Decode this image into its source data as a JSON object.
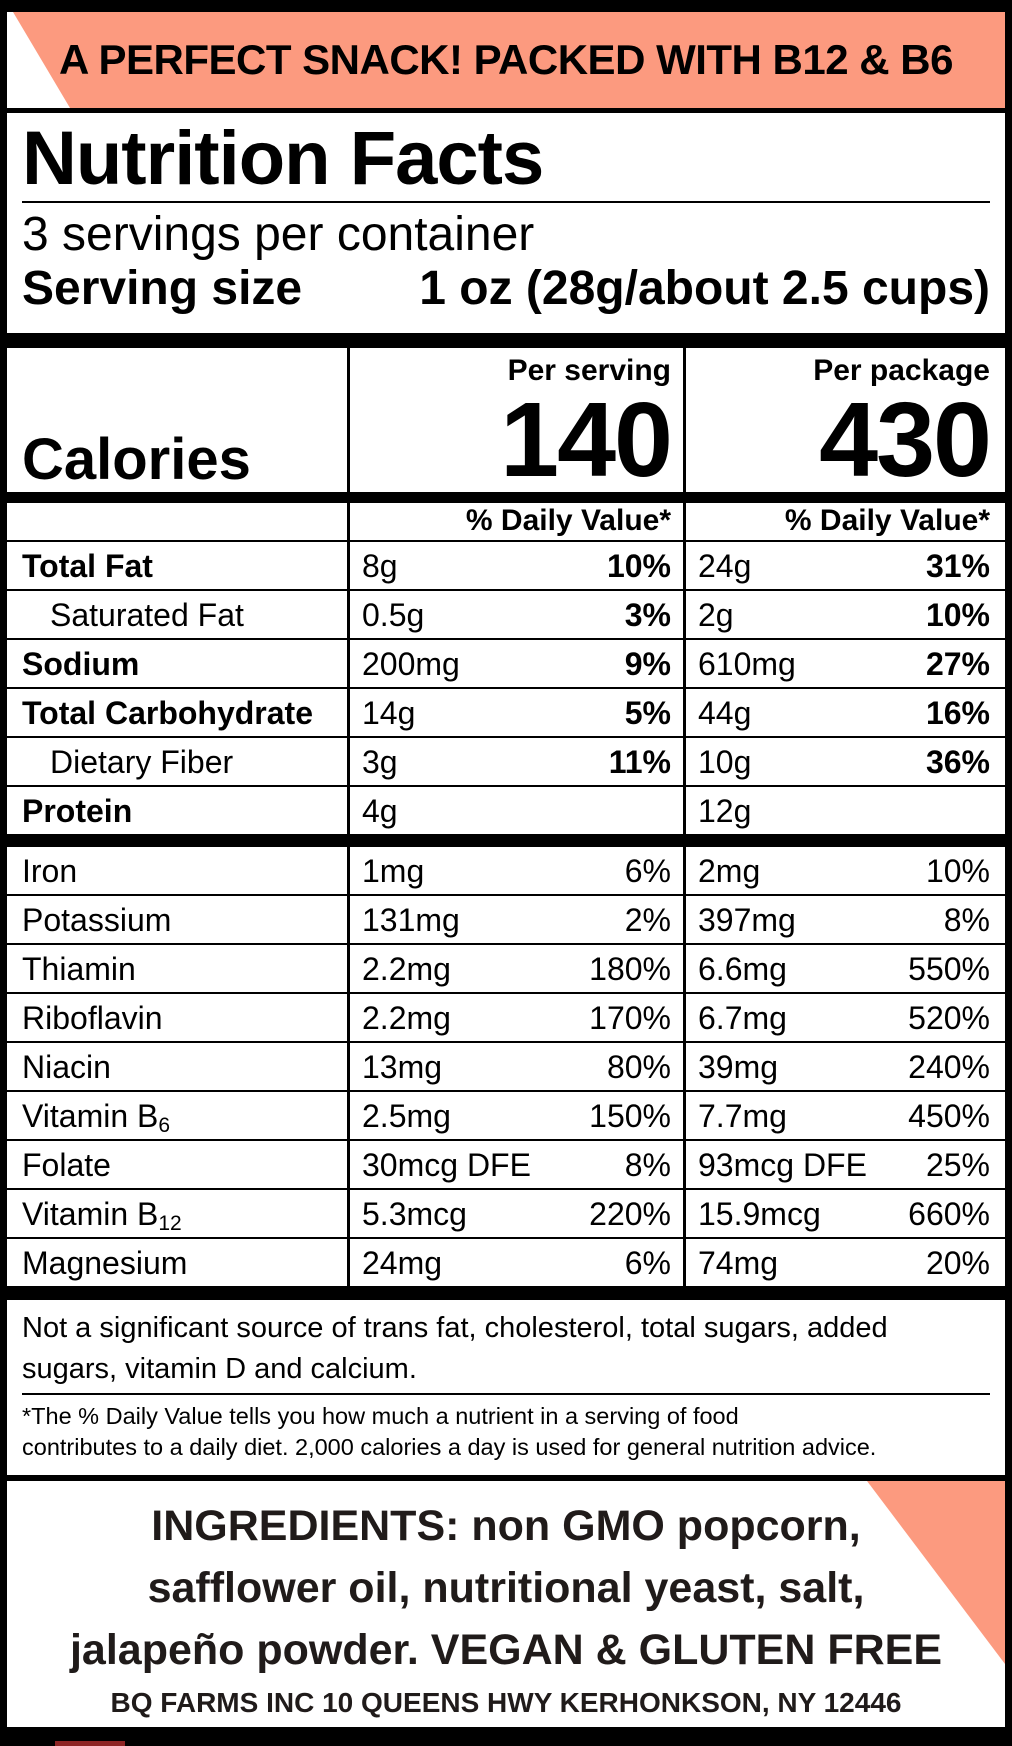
{
  "colors": {
    "accent_salmon": "#FC9A7F",
    "text_black": "#000000",
    "dark_red": "#8D2424"
  },
  "banner": {
    "text": "A PERFECT SNACK! PACKED WITH B12 & B6"
  },
  "header": {
    "title": "Nutrition Facts",
    "servings_per_container": "3 servings per container",
    "serving_size_label": "Serving size",
    "serving_size_value": "1 oz (28g/about 2.5 cups)"
  },
  "calories": {
    "label": "Calories",
    "per_serving_label": "Per serving",
    "per_serving_value": "140",
    "per_package_label": "Per package",
    "per_package_value": "430"
  },
  "table": {
    "daily_value_header": "% Daily Value*",
    "main_rows": [
      {
        "label": "Total Fat",
        "sub": "",
        "bold": true,
        "indent": false,
        "dv_bold": true,
        "s_amt": "8g",
        "s_dv": "10%",
        "p_amt": "24g",
        "p_dv": "31%"
      },
      {
        "label": "Saturated Fat",
        "sub": "",
        "bold": false,
        "indent": true,
        "dv_bold": true,
        "s_amt": "0.5g",
        "s_dv": "3%",
        "p_amt": "2g",
        "p_dv": "10%"
      },
      {
        "label": "Sodium",
        "sub": "",
        "bold": true,
        "indent": false,
        "dv_bold": true,
        "s_amt": "200mg",
        "s_dv": "9%",
        "p_amt": "610mg",
        "p_dv": "27%"
      },
      {
        "label": "Total Carbohydrate",
        "sub": "",
        "bold": true,
        "indent": false,
        "dv_bold": true,
        "s_amt": "14g",
        "s_dv": "5%",
        "p_amt": "44g",
        "p_dv": "16%"
      },
      {
        "label": "Dietary Fiber",
        "sub": "",
        "bold": false,
        "indent": true,
        "dv_bold": true,
        "s_amt": "3g",
        "s_dv": "11%",
        "p_amt": "10g",
        "p_dv": "36%"
      },
      {
        "label": "Protein",
        "sub": "",
        "bold": true,
        "indent": false,
        "dv_bold": false,
        "s_amt": "4g",
        "s_dv": "",
        "p_amt": "12g",
        "p_dv": ""
      }
    ],
    "vitamin_rows": [
      {
        "label": "Iron",
        "sub": "",
        "bold": false,
        "indent": false,
        "dv_bold": false,
        "s_amt": "1mg",
        "s_dv": "6%",
        "p_amt": "2mg",
        "p_dv": "10%"
      },
      {
        "label": "Potassium",
        "sub": "",
        "bold": false,
        "indent": false,
        "dv_bold": false,
        "s_amt": "131mg",
        "s_dv": "2%",
        "p_amt": "397mg",
        "p_dv": "8%"
      },
      {
        "label": "Thiamin",
        "sub": "",
        "bold": false,
        "indent": false,
        "dv_bold": false,
        "s_amt": "2.2mg",
        "s_dv": "180%",
        "p_amt": "6.6mg",
        "p_dv": "550%"
      },
      {
        "label": "Riboflavin",
        "sub": "",
        "bold": false,
        "indent": false,
        "dv_bold": false,
        "s_amt": "2.2mg",
        "s_dv": "170%",
        "p_amt": "6.7mg",
        "p_dv": "520%"
      },
      {
        "label": "Niacin",
        "sub": "",
        "bold": false,
        "indent": false,
        "dv_bold": false,
        "s_amt": "13mg",
        "s_dv": "80%",
        "p_amt": "39mg",
        "p_dv": "240%"
      },
      {
        "label": "Vitamin B",
        "sub": "6",
        "bold": false,
        "indent": false,
        "dv_bold": false,
        "s_amt": "2.5mg",
        "s_dv": "150%",
        "p_amt": "7.7mg",
        "p_dv": "450%"
      },
      {
        "label": "Folate",
        "sub": "",
        "bold": false,
        "indent": false,
        "dv_bold": false,
        "s_amt": "30mcg DFE",
        "s_dv": "8%",
        "p_amt": "93mcg DFE",
        "p_dv": "25%"
      },
      {
        "label": "Vitamin B",
        "sub": "12",
        "bold": false,
        "indent": false,
        "dv_bold": false,
        "s_amt": "5.3mcg",
        "s_dv": "220%",
        "p_amt": "15.9mcg",
        "p_dv": "660%"
      },
      {
        "label": "Magnesium",
        "sub": "",
        "bold": false,
        "indent": false,
        "dv_bold": false,
        "s_amt": "24mg",
        "s_dv": "6%",
        "p_amt": "74mg",
        "p_dv": "20%"
      }
    ]
  },
  "footnotes": {
    "not_significant": "Not a significant source of trans fat, cholesterol, total sugars, added sugars, vitamin D and calcium.",
    "daily_value_line1": "*The % Daily Value tells you how much a nutrient in a serving of food",
    "daily_value_line2": "contributes to a daily diet. 2,000 calories a day is used for general nutrition advice."
  },
  "ingredients": {
    "lines": [
      "INGREDIENTS: non GMO popcorn,",
      "safflower oil, nutritional yeast, salt,",
      "jalapeño powder. VEGAN & GLUTEN FREE"
    ],
    "address": "BQ FARMS INC 10 QUEENS HWY KERHONKSON, NY 12446"
  }
}
